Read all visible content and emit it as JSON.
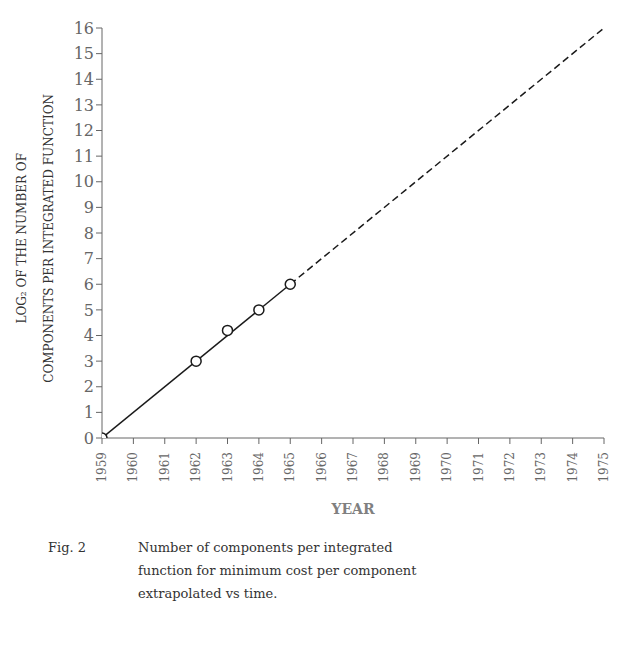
{
  "chart_data": {
    "type": "line",
    "xlabel": "YEAR",
    "ylabel": [
      "LOG₂ OF THE NUMBER OF",
      "COMPONENTS PER INTEGRATED FUNCTION"
    ],
    "xlim": [
      1959,
      1975
    ],
    "ylim": [
      0,
      16
    ],
    "xticks": [
      1959,
      1960,
      1961,
      1962,
      1963,
      1964,
      1965,
      1966,
      1967,
      1968,
      1969,
      1970,
      1971,
      1972,
      1973,
      1974,
      1975
    ],
    "yticks": [
      0,
      1,
      2,
      3,
      4,
      5,
      6,
      7,
      8,
      9,
      10,
      11,
      12,
      13,
      14,
      15,
      16
    ],
    "series": [
      {
        "type": "line",
        "line_style": "solid",
        "color": "#1a1a1a",
        "x": [
          1959,
          1965
        ],
        "values": [
          0,
          6.0
        ]
      },
      {
        "type": "line",
        "line_style": "dashed",
        "color": "#1a1a1a",
        "x": [
          1965,
          1975
        ],
        "values": [
          6.0,
          16.0
        ]
      },
      {
        "type": "scatter",
        "marker": "circle",
        "color": "#1a1a1a",
        "x": [
          1959,
          1962,
          1963,
          1964,
          1965
        ],
        "values": [
          0,
          3.0,
          4.2,
          5.0,
          6.0
        ]
      }
    ],
    "grid": false,
    "annotations": [
      "Fig. 2",
      "Number of components per integrated",
      "function for minimum cost per component",
      "extrapolated vs time."
    ]
  }
}
